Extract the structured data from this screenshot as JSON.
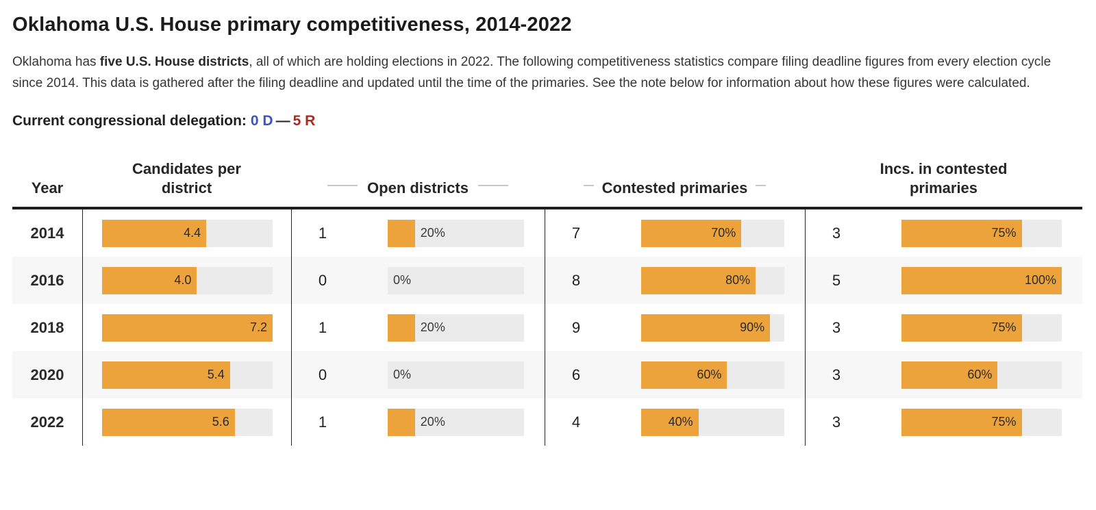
{
  "title": "Oklahoma U.S. House primary competitiveness, 2014-2022",
  "intro": {
    "text_before": "Oklahoma has ",
    "bold": "five U.S. House districts",
    "text_after": ", all of which are holding elections in 2022. The following competitiveness statistics compare filing deadline figures from every election cycle since 2014. This data is gathered after the filing deadline and updated until the time of the primaries. See the note below for information about how these figures were calculated."
  },
  "delegation": {
    "label": "Current congressional delegation:",
    "democrats": "0 D",
    "separator": "—",
    "republicans": "5 R",
    "democrat_color": "#3b53c4",
    "republican_color": "#ad2a23"
  },
  "colors": {
    "bar_orange": "#eda33b",
    "bar_track_gray": "#ebebeb",
    "alt_row_gray": "#f7f7f7",
    "border_dark": "#1e1e1e"
  },
  "chart_data": {
    "type": "table",
    "title": "Oklahoma U.S. House primary competitiveness, 2014-2022",
    "columns": [
      "Year",
      "Candidates per district",
      "Open districts",
      "Contested primaries",
      "Incs. in contested primaries"
    ],
    "candidates_axis_max": 7.2,
    "district_count": 5,
    "rows": [
      {
        "year": "2014",
        "cpd": {
          "value": "4.4",
          "pct": 61.1
        },
        "open": {
          "count": "1",
          "label": "20%",
          "pct": 20
        },
        "contested": {
          "count": "7",
          "label": "70%",
          "pct": 70
        },
        "incs": {
          "count": "3",
          "label": "75%",
          "pct": 75
        }
      },
      {
        "year": "2016",
        "cpd": {
          "value": "4.0",
          "pct": 55.6
        },
        "open": {
          "count": "0",
          "label": "0%",
          "pct": 0
        },
        "contested": {
          "count": "8",
          "label": "80%",
          "pct": 80
        },
        "incs": {
          "count": "5",
          "label": "100%",
          "pct": 100
        }
      },
      {
        "year": "2018",
        "cpd": {
          "value": "7.2",
          "pct": 100
        },
        "open": {
          "count": "1",
          "label": "20%",
          "pct": 20
        },
        "contested": {
          "count": "9",
          "label": "90%",
          "pct": 90
        },
        "incs": {
          "count": "3",
          "label": "75%",
          "pct": 75
        }
      },
      {
        "year": "2020",
        "cpd": {
          "value": "5.4",
          "pct": 75
        },
        "open": {
          "count": "0",
          "label": "0%",
          "pct": 0
        },
        "contested": {
          "count": "6",
          "label": "60%",
          "pct": 60
        },
        "incs": {
          "count": "3",
          "label": "60%",
          "pct": 60
        }
      },
      {
        "year": "2022",
        "cpd": {
          "value": "5.6",
          "pct": 77.8
        },
        "open": {
          "count": "1",
          "label": "20%",
          "pct": 20
        },
        "contested": {
          "count": "4",
          "label": "40%",
          "pct": 40
        },
        "incs": {
          "count": "3",
          "label": "75%",
          "pct": 75
        }
      }
    ]
  }
}
